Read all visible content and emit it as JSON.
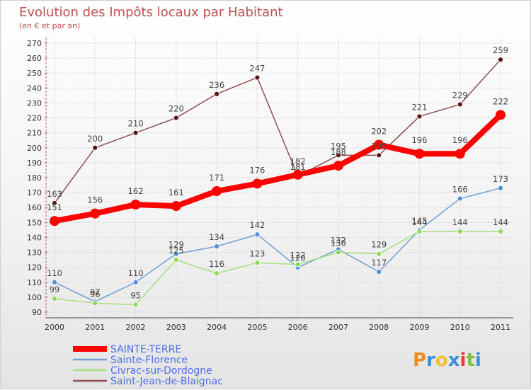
{
  "chart_data": {
    "type": "line",
    "title": "Evolution des Impôts locaux par Habitant",
    "subtitle": "(en € et par an)",
    "xlabel": "",
    "ylabel": "",
    "ylim": [
      90,
      270
    ],
    "yticks": [
      90,
      100,
      110,
      120,
      130,
      140,
      150,
      160,
      170,
      180,
      190,
      200,
      210,
      220,
      230,
      240,
      250,
      260,
      270
    ],
    "categories": [
      "2000",
      "2001",
      "2002",
      "2003",
      "2004",
      "2005",
      "2006",
      "2007",
      "2008",
      "2009",
      "2010",
      "2011"
    ],
    "grid": true,
    "legend_position": "bottom-left",
    "series": [
      {
        "name": "SAINTE-TERRE",
        "color": "#ff0000",
        "marker": "#ff0000",
        "label_color": "#4f6fe8",
        "emphasis": true,
        "values": [
          151,
          156,
          162,
          161,
          171,
          176,
          182,
          188,
          202,
          196,
          196,
          222
        ]
      },
      {
        "name": "Sainte-Florence",
        "color": "#6f9fd3",
        "marker": "#4f8fd8",
        "label_color": "#4f6fe8",
        "emphasis": false,
        "values": [
          110,
          97,
          110,
          129,
          134,
          142,
          120,
          132,
          117,
          145,
          166,
          173
        ]
      },
      {
        "name": "Civrac-sur-Dordogne",
        "color": "#a6e07d",
        "marker": "#8fd65a",
        "label_color": "#4f6fe8",
        "emphasis": false,
        "values": [
          99,
          96,
          95,
          125,
          116,
          123,
          122,
          130,
          129,
          144,
          144,
          144
        ]
      },
      {
        "name": "Saint-Jean-de-Blaignac",
        "color": "#8b4f4f",
        "marker": "#5a1414",
        "label_color": "#4f6fe8",
        "emphasis": false,
        "values": [
          163,
          200,
          210,
          220,
          236,
          247,
          181,
          195,
          195,
          221,
          229,
          259
        ]
      }
    ]
  },
  "brand": {
    "text": "Proxiti",
    "letters": [
      "P",
      "r",
      "o",
      "x",
      "i",
      "t",
      "i"
    ]
  }
}
